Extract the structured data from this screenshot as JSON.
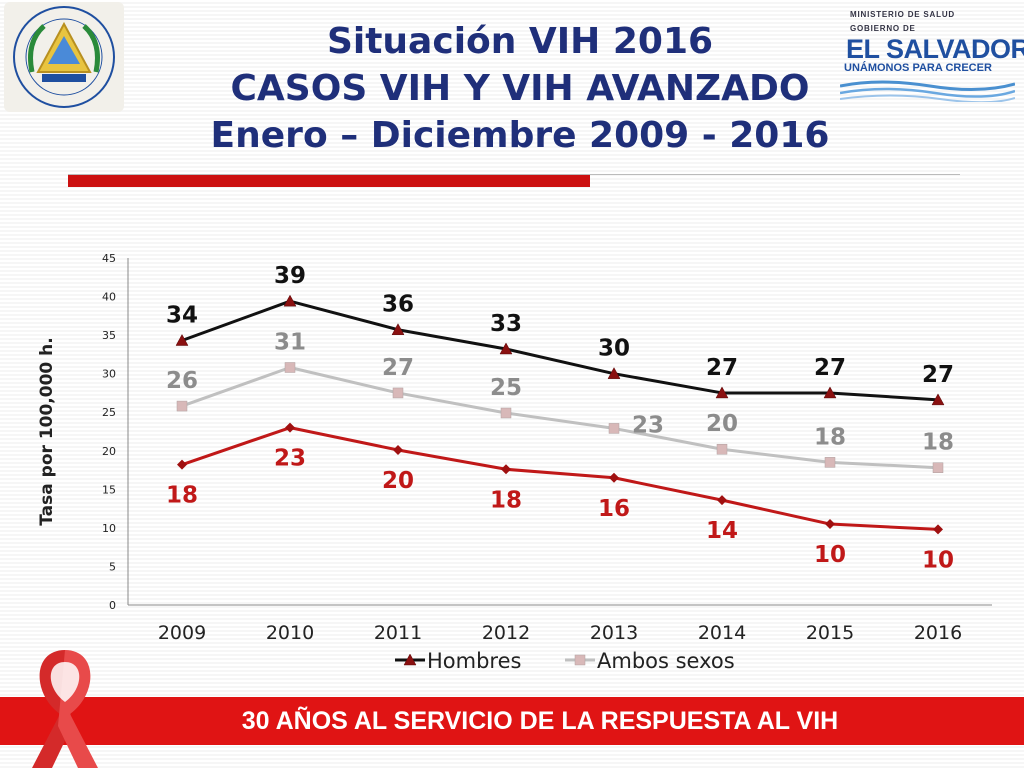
{
  "header": {
    "title_line1": "Situación VIH 2016",
    "title_line2": "CASOS VIH Y VIH AVANZADO",
    "title_line3": "Enero – Diciembre 2009 - 2016"
  },
  "logos": {
    "seal_icon": "el-salvador-coat-of-arms",
    "gov_ministry": "MINISTERIO DE SALUD",
    "gov_label": "GOBIERNO DE",
    "gov_name": "EL SALVADOR",
    "gov_slogan": "UNÁMONOS PARA CRECER"
  },
  "colors": {
    "title": "#1f2f7a",
    "accent_red": "#cc1111",
    "hombres": "#111111",
    "ambos": "#c0c0c0",
    "mujeres": "#c01818",
    "ambos_label": "#8c8c8c",
    "footer_bg": "#e01414"
  },
  "chart_data": {
    "type": "line",
    "ylabel": "Tasa por 100,000 h.",
    "xlabel": "",
    "title": "",
    "ylim": [
      0,
      45
    ],
    "yticks": [
      0,
      5,
      10,
      15,
      20,
      25,
      30,
      35,
      40,
      45
    ],
    "categories": [
      "2009",
      "2010",
      "2011",
      "2012",
      "2013",
      "2014",
      "2015",
      "2016"
    ],
    "legend_position": "bottom",
    "series": [
      {
        "name": "Hombres",
        "key": "hombres",
        "marker": "triangle",
        "in_legend": true,
        "values": [
          34.3,
          39.4,
          35.7,
          33.2,
          30.0,
          27.5,
          27.5,
          26.6
        ],
        "labels": [
          "34",
          "39",
          "36",
          "33",
          "30",
          "27",
          "27",
          "27"
        ]
      },
      {
        "name": "Ambos sexos",
        "key": "ambos",
        "marker": "square",
        "in_legend": true,
        "values": [
          25.8,
          30.8,
          27.5,
          24.9,
          22.9,
          20.2,
          18.5,
          17.8
        ],
        "labels": [
          "26",
          "31",
          "27",
          "25",
          "23",
          "20",
          "18",
          "18"
        ]
      },
      {
        "name": "",
        "key": "mujeres",
        "marker": "diamond",
        "in_legend": false,
        "values": [
          18.2,
          23.0,
          20.1,
          17.6,
          16.5,
          13.6,
          10.5,
          9.8
        ],
        "labels": [
          "18",
          "23",
          "20",
          "18",
          "16",
          "14",
          "10",
          "10"
        ]
      }
    ]
  },
  "footer": {
    "text": "30 AÑOS AL SERVICIO DE LA RESPUESTA AL VIH",
    "ribbon_icon": "red-ribbon-icon"
  }
}
